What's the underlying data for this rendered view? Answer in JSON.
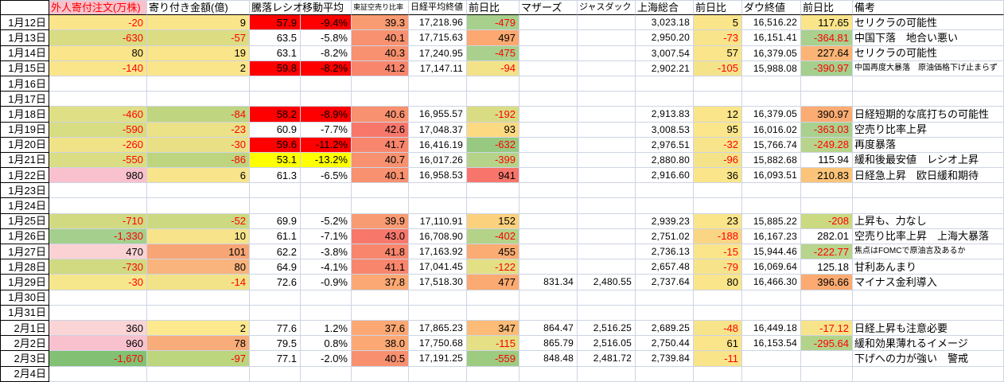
{
  "palette": {
    "negative_text": "#ff0000",
    "gridline": "#cdd4e4",
    "black_border": "#000000",
    "header_pink_bg": "#f8c2cc",
    "header_pink_text": "#ff0000",
    "highlight_red": "#ff0000",
    "highlight_yellow": "#ffff00"
  },
  "columns": [
    {
      "key": "date",
      "label": "",
      "width": 62,
      "align": "right"
    },
    {
      "key": "foreign_orders",
      "label": "外人寄付注文(万株)",
      "width": 123,
      "header_bg": "#f8c2cc",
      "header_color": "#ff0000"
    },
    {
      "key": "opening_amount",
      "label": "寄り付き金額(億)",
      "width": 129
    },
    {
      "key": "updown_ratio",
      "label": "騰落レシオ",
      "width": 64
    },
    {
      "key": "moving_average",
      "label": "移動平均",
      "width": 64
    },
    {
      "key": "tse_short_sell_ratio",
      "label": "東証空売り比率",
      "width": 72,
      "header_size": 9
    },
    {
      "key": "nikkei_close",
      "label": "日経平均終値",
      "width": 73,
      "header_size": 11,
      "big": true
    },
    {
      "key": "nikkei_change",
      "label": "前日比",
      "width": 66
    },
    {
      "key": "mothers",
      "label": "マザーズ",
      "width": 73,
      "big": true
    },
    {
      "key": "jasdaq",
      "label": "ジャスダック",
      "width": 73,
      "header_size": 11,
      "big": true
    },
    {
      "key": "shanghai_composite",
      "label": "上海総合",
      "width": 73,
      "big": true
    },
    {
      "key": "shanghai_change",
      "label": "前日比",
      "width": 61
    },
    {
      "key": "dow_close",
      "label": "ダウ終値",
      "width": 74,
      "big": true
    },
    {
      "key": "dow_change",
      "label": "前日比",
      "width": 65
    },
    {
      "key": "remarks",
      "label": "備考",
      "width": 190,
      "align": "left"
    }
  ],
  "rows": [
    {
      "date": "1月12日",
      "cells": [
        [
          "-20",
          "#fbe58a",
          "r"
        ],
        [
          "9",
          "#fbe58a",
          ""
        ],
        [
          "57.9",
          "#ff0000",
          ""
        ],
        [
          "-9.4%",
          "#ff0000",
          ""
        ],
        [
          "39.3",
          "#f99b72",
          ""
        ],
        [
          "17,218.96",
          "",
          ""
        ],
        [
          "-479",
          "#a8d08d",
          "r"
        ],
        [
          "",
          "",
          ""
        ],
        [
          "",
          "",
          ""
        ],
        [
          "3,023.18",
          "",
          ""
        ],
        [
          "5",
          "#fbe58a",
          ""
        ],
        [
          "16,516.22",
          "",
          ""
        ],
        [
          "117.65",
          "#fbe58a",
          ""
        ],
        [
          "セリクラの可能性",
          "",
          ""
        ]
      ]
    },
    {
      "date": "1月13日",
      "cells": [
        [
          "-630",
          "#d9dc82",
          "r"
        ],
        [
          "-57",
          "#dcdd83",
          "r"
        ],
        [
          "63.5",
          "",
          ""
        ],
        [
          "-5.8%",
          "",
          ""
        ],
        [
          "40.1",
          "#f8916f",
          ""
        ],
        [
          "17,715.63",
          "",
          ""
        ],
        [
          "497",
          "#fca870",
          ""
        ],
        [
          "",
          "",
          ""
        ],
        [
          "",
          "",
          ""
        ],
        [
          "2,950.20",
          "",
          ""
        ],
        [
          "-73",
          "#f8e48a",
          "r"
        ],
        [
          "16,151.41",
          "",
          ""
        ],
        [
          "-364.81",
          "#a9d08d",
          "r"
        ],
        [
          "中国下落　地合い悪い",
          "",
          ""
        ]
      ]
    },
    {
      "date": "1月14日",
      "cells": [
        [
          "80",
          "#fbe58a",
          ""
        ],
        [
          "19",
          "#fbe58a",
          ""
        ],
        [
          "63.1",
          "",
          ""
        ],
        [
          "-8.2%",
          "",
          ""
        ],
        [
          "40.3",
          "#f8916f",
          ""
        ],
        [
          "17,240.95",
          "",
          ""
        ],
        [
          "-475",
          "#a9d08d",
          "r"
        ],
        [
          "",
          "",
          ""
        ],
        [
          "",
          "",
          ""
        ],
        [
          "3,007.54",
          "",
          ""
        ],
        [
          "57",
          "#fbe58a",
          ""
        ],
        [
          "16,379.05",
          "",
          ""
        ],
        [
          "227.64",
          "#fbb475",
          ""
        ],
        [
          "セリクラの可能性",
          "",
          ""
        ]
      ]
    },
    {
      "date": "1月15日",
      "cells": [
        [
          "-140",
          "#fae58b",
          "r"
        ],
        [
          "2",
          "#fae58b",
          ""
        ],
        [
          "59.8",
          "#ff0000",
          ""
        ],
        [
          "-8.2%",
          "#ff0000",
          ""
        ],
        [
          "41.2",
          "#f8866d",
          ""
        ],
        [
          "17,147.11",
          "",
          ""
        ],
        [
          "-94",
          "#f2e288",
          "r"
        ],
        [
          "",
          "",
          ""
        ],
        [
          "",
          "",
          ""
        ],
        [
          "2,902.21",
          "",
          ""
        ],
        [
          "-105",
          "#f5e38a",
          "r"
        ],
        [
          "15,988.08",
          "",
          ""
        ],
        [
          "-390.97",
          "#a5cf8c",
          "r"
        ],
        [
          "中国再度大暴落　原油価格下げ止まらず",
          "",
          "s"
        ]
      ]
    },
    {
      "date": "1月16日",
      "cells": []
    },
    {
      "date": "1月17日",
      "cells": []
    },
    {
      "date": "1月18日",
      "cells": [
        [
          "-460",
          "#dfdf85",
          "r"
        ],
        [
          "-84",
          "#bfd57f",
          "r"
        ],
        [
          "58.2",
          "#ff0000",
          ""
        ],
        [
          "-8.9%",
          "#ff0000",
          ""
        ],
        [
          "40.6",
          "#f8916f",
          ""
        ],
        [
          "16,955.57",
          "",
          ""
        ],
        [
          "-192",
          "#d9dc82",
          "r"
        ],
        [
          "",
          "",
          ""
        ],
        [
          "",
          "",
          ""
        ],
        [
          "2,913.83",
          "",
          ""
        ],
        [
          "12",
          "#fbe58a",
          ""
        ],
        [
          "16,379.05",
          "",
          ""
        ],
        [
          "390.97",
          "#fbac72",
          ""
        ],
        [
          "日経短期的な底打ちの可能性",
          "",
          ""
        ]
      ]
    },
    {
      "date": "1月19日",
      "cells": [
        [
          "-590",
          "#d8dc82",
          "r"
        ],
        [
          "-23",
          "#ebe187",
          "r"
        ],
        [
          "60.9",
          "",
          ""
        ],
        [
          "-7.7%",
          "",
          ""
        ],
        [
          "42.6",
          "#f7776b",
          ""
        ],
        [
          "17,048.37",
          "",
          ""
        ],
        [
          "93",
          "#fcda81",
          ""
        ],
        [
          "",
          "",
          ""
        ],
        [
          "",
          "",
          ""
        ],
        [
          "3,008.53",
          "",
          ""
        ],
        [
          "95",
          "#fce68b",
          ""
        ],
        [
          "16,016.02",
          "",
          ""
        ],
        [
          "-363.03",
          "#a9d08d",
          "r"
        ],
        [
          "空売り比率上昇",
          "",
          ""
        ]
      ]
    },
    {
      "date": "1月20日",
      "cells": [
        [
          "-260",
          "#efe287",
          "r"
        ],
        [
          "-30",
          "#e9e086",
          "r"
        ],
        [
          "59.6",
          "#ff0000",
          ""
        ],
        [
          "-11.2%",
          "#ff0000",
          ""
        ],
        [
          "41.7",
          "#f8866d",
          ""
        ],
        [
          "16,416.19",
          "",
          ""
        ],
        [
          "-632",
          "#97ca80",
          "r"
        ],
        [
          "",
          "",
          ""
        ],
        [
          "",
          "",
          ""
        ],
        [
          "2,976.51",
          "",
          ""
        ],
        [
          "-32",
          "#f8e48a",
          "r"
        ],
        [
          "15,766.74",
          "",
          ""
        ],
        [
          "-249.28",
          "#b7d48a",
          "r"
        ],
        [
          "再度暴落",
          "",
          ""
        ]
      ]
    },
    {
      "date": "1月21日",
      "cells": [
        [
          "-550",
          "#dadd83",
          "r"
        ],
        [
          "-86",
          "#bed57f",
          "r"
        ],
        [
          "53.1",
          "#ffff00",
          ""
        ],
        [
          "-13.2%",
          "#ffff00",
          ""
        ],
        [
          "40.7",
          "#f8916f",
          ""
        ],
        [
          "16,017.26",
          "",
          ""
        ],
        [
          "-399",
          "#b5d489",
          "r"
        ],
        [
          "",
          "",
          ""
        ],
        [
          "",
          "",
          ""
        ],
        [
          "2,880.80",
          "",
          ""
        ],
        [
          "-96",
          "#f5e38a",
          "r"
        ],
        [
          "15,882.68",
          "",
          ""
        ],
        [
          "115.94",
          "",
          ""
        ],
        [
          "緩和後最安値　レシオ上昇",
          "",
          ""
        ]
      ]
    },
    {
      "date": "1月22日",
      "cells": [
        [
          "980",
          "#f9c0cd",
          ""
        ],
        [
          "6",
          "#f8e48a",
          ""
        ],
        [
          "61.3",
          "",
          ""
        ],
        [
          "-6.5%",
          "",
          ""
        ],
        [
          "40.1",
          "#f8916f",
          ""
        ],
        [
          "16,958.53",
          "",
          ""
        ],
        [
          "941",
          "#f8756b",
          ""
        ],
        [
          "",
          "",
          ""
        ],
        [
          "",
          "",
          ""
        ],
        [
          "2,916.60",
          "",
          ""
        ],
        [
          "36",
          "#fbe58a",
          ""
        ],
        [
          "16,093.51",
          "",
          ""
        ],
        [
          "210.83",
          "#fbc479",
          ""
        ],
        [
          "日経急上昇　欧日緩和期待",
          "",
          ""
        ]
      ]
    },
    {
      "date": "1月23日",
      "cells": []
    },
    {
      "date": "1月24日",
      "cells": []
    },
    {
      "date": "1月25日",
      "cells": [
        [
          "-710",
          "#d2da81",
          "r"
        ],
        [
          "-52",
          "#cdd980",
          "r"
        ],
        [
          "69.9",
          "",
          ""
        ],
        [
          "-5.2%",
          "",
          ""
        ],
        [
          "39.9",
          "#f99b72",
          ""
        ],
        [
          "17,110.91",
          "",
          ""
        ],
        [
          "152",
          "#fcd17d",
          ""
        ],
        [
          "",
          "",
          ""
        ],
        [
          "",
          "",
          ""
        ],
        [
          "2,939.23",
          "",
          ""
        ],
        [
          "23",
          "#fbe58a",
          ""
        ],
        [
          "15,885.22",
          "",
          ""
        ],
        [
          "-208",
          "#cbd981",
          "r"
        ],
        [
          "上昇も、力なし",
          "",
          ""
        ]
      ]
    },
    {
      "date": "1月26日",
      "cells": [
        [
          "-1,330",
          "#a5cf8d",
          "r"
        ],
        [
          "10",
          "#f6e38a",
          ""
        ],
        [
          "61.1",
          "",
          ""
        ],
        [
          "-7.1%",
          "",
          ""
        ],
        [
          "43.0",
          "#f7776b",
          ""
        ],
        [
          "16,708.90",
          "",
          ""
        ],
        [
          "-402",
          "#b4d388",
          "r"
        ],
        [
          "",
          "",
          ""
        ],
        [
          "",
          "",
          ""
        ],
        [
          "2,751.02",
          "",
          ""
        ],
        [
          "-188",
          "#fad584",
          "r"
        ],
        [
          "16,167.23",
          "",
          ""
        ],
        [
          "282.01",
          "",
          ""
        ],
        [
          "空売り比率上昇　上海大暴落",
          "",
          ""
        ]
      ]
    },
    {
      "date": "1月27日",
      "cells": [
        [
          "470",
          "#fbd2d4",
          ""
        ],
        [
          "101",
          "#f8a575",
          ""
        ],
        [
          "62.2",
          "",
          ""
        ],
        [
          "-3.8%",
          "",
          ""
        ],
        [
          "41.8",
          "#f8866d",
          ""
        ],
        [
          "17,163.92",
          "",
          ""
        ],
        [
          "455",
          "#fbac72",
          ""
        ],
        [
          "",
          "",
          ""
        ],
        [
          "",
          "",
          ""
        ],
        [
          "2,736.13",
          "",
          ""
        ],
        [
          "-15",
          "#fae58a",
          "r"
        ],
        [
          "15,944.46",
          "",
          ""
        ],
        [
          "-222.77",
          "#b9d48c",
          "r"
        ],
        [
          "焦点はFOMCで原油言及あるか",
          "",
          "s"
        ]
      ]
    },
    {
      "date": "1月28日",
      "cells": [
        [
          "-730",
          "#d1da81",
          "r"
        ],
        [
          "80",
          "#f9b37c",
          ""
        ],
        [
          "64.9",
          "",
          ""
        ],
        [
          "-4.1%",
          "",
          ""
        ],
        [
          "41.1",
          "#f8866d",
          ""
        ],
        [
          "17,041.45",
          "",
          ""
        ],
        [
          "-122",
          "#e3df85",
          "r"
        ],
        [
          "",
          "",
          ""
        ],
        [
          "",
          "",
          ""
        ],
        [
          "2,657.48",
          "",
          ""
        ],
        [
          "-79",
          "#f7e48a",
          "r"
        ],
        [
          "16,069.64",
          "",
          ""
        ],
        [
          "125.18",
          "",
          ""
        ],
        [
          "甘利あんまり",
          "",
          ""
        ]
      ]
    },
    {
      "date": "1月29日",
      "cells": [
        [
          "-30",
          "#f7e78c",
          "r"
        ],
        [
          "-14",
          "#f2e288",
          "r"
        ],
        [
          "72.6",
          "",
          ""
        ],
        [
          "-0.9%",
          "",
          ""
        ],
        [
          "37.8",
          "#fba874",
          ""
        ],
        [
          "17,518.30",
          "",
          ""
        ],
        [
          "477",
          "#fbaa71",
          ""
        ],
        [
          "831.34",
          "",
          ""
        ],
        [
          "2,480.55",
          "",
          ""
        ],
        [
          "2,737.64",
          "",
          ""
        ],
        [
          "80",
          "#fbe58a",
          ""
        ],
        [
          "16,466.30",
          "",
          ""
        ],
        [
          "396.66",
          "#fbab71",
          ""
        ],
        [
          "マイナス金利導入",
          "",
          ""
        ]
      ]
    },
    {
      "date": "1月30日",
      "cells": []
    },
    {
      "date": "1月31日",
      "cells": []
    },
    {
      "date": "2月1日",
      "cells": [
        [
          "360",
          "#fbd4d6",
          ""
        ],
        [
          "2",
          "#fce98e",
          ""
        ],
        [
          "77.6",
          "",
          ""
        ],
        [
          "1.2%",
          "",
          ""
        ],
        [
          "37.6",
          "#fba874",
          ""
        ],
        [
          "17,865.23",
          "",
          ""
        ],
        [
          "347",
          "#fcbb76",
          ""
        ],
        [
          "864.47",
          "",
          ""
        ],
        [
          "2,516.25",
          "",
          ""
        ],
        [
          "2,689.25",
          "",
          ""
        ],
        [
          "-48",
          "#f7e48a",
          "r"
        ],
        [
          "16,449.18",
          "",
          ""
        ],
        [
          "-17.12",
          "#f7e48a",
          "r"
        ],
        [
          "日経上昇も注意必要",
          "",
          ""
        ]
      ]
    },
    {
      "date": "2月2日",
      "cells": [
        [
          "960",
          "#f9c1ce",
          ""
        ],
        [
          "78",
          "#f8ac79",
          ""
        ],
        [
          "79.5",
          "",
          ""
        ],
        [
          "0.8%",
          "",
          ""
        ],
        [
          "38.0",
          "#fba874",
          ""
        ],
        [
          "17,750.68",
          "",
          ""
        ],
        [
          "-115",
          "#e5e085",
          "r"
        ],
        [
          "865.79",
          "",
          ""
        ],
        [
          "2,516.05",
          "",
          ""
        ],
        [
          "2,750.44",
          "",
          ""
        ],
        [
          "61",
          "#fbe58a",
          ""
        ],
        [
          "16,153.54",
          "",
          ""
        ],
        [
          "-295.64",
          "#b3d38a",
          "r"
        ],
        [
          "緩和効果薄れるイメージ",
          "",
          ""
        ]
      ]
    },
    {
      "date": "2月3日",
      "cells": [
        [
          "-1,670",
          "#82c173",
          "r"
        ],
        [
          "-97",
          "#bcd67d",
          "r"
        ],
        [
          "77.1",
          "",
          ""
        ],
        [
          "-2.0%",
          "",
          ""
        ],
        [
          "40.5",
          "#f8906f",
          ""
        ],
        [
          "17,191.25",
          "",
          ""
        ],
        [
          "-559",
          "#9dcb80",
          "r"
        ],
        [
          "848.48",
          "",
          ""
        ],
        [
          "2,481.72",
          "",
          ""
        ],
        [
          "2,739.84",
          "",
          ""
        ],
        [
          "-11",
          "#f9e48a",
          "r"
        ],
        [
          "",
          "",
          ""
        ],
        [
          "",
          "",
          ""
        ],
        [
          "下げへの力が強い　警戒",
          "",
          ""
        ]
      ]
    },
    {
      "date": "2月4日",
      "cells": []
    }
  ]
}
